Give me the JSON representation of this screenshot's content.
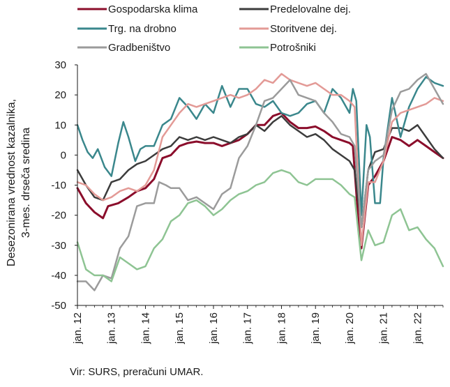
{
  "chart_data": {
    "type": "line",
    "ylabel_line1": "Desezonirana vrednost kazalnika,",
    "ylabel_line2": "3-mes. drseča sredina",
    "ylim": [
      -50,
      30
    ],
    "yticks": [
      30,
      20,
      10,
      0,
      -10,
      -20,
      -30,
      -40,
      -50
    ],
    "xlim": [
      2012.0,
      2022.75
    ],
    "xticks": [
      {
        "x": 2012,
        "label": "jan. 12"
      },
      {
        "x": 2013,
        "label": "jan. 13"
      },
      {
        "x": 2014,
        "label": "jan. 14"
      },
      {
        "x": 2015,
        "label": "jan. 15"
      },
      {
        "x": 2016,
        "label": "jan. 16"
      },
      {
        "x": 2017,
        "label": "jan. 17"
      },
      {
        "x": 2018,
        "label": "jan. 18"
      },
      {
        "x": 2019,
        "label": "jan. 19"
      },
      {
        "x": 2020,
        "label": "jan. 20"
      },
      {
        "x": 2021,
        "label": "jan. 21"
      },
      {
        "x": 2022,
        "label": "jan. 22"
      }
    ],
    "grid": false,
    "legend_position": "top",
    "series": [
      {
        "name": "Gospodarska klima",
        "color": "#8b0d2b",
        "width": 3,
        "points": [
          [
            2012,
            -11
          ],
          [
            2012.25,
            -16
          ],
          [
            2012.5,
            -19
          ],
          [
            2012.75,
            -21
          ],
          [
            2012.9,
            -17
          ],
          [
            2013.2,
            -16
          ],
          [
            2013.5,
            -14
          ],
          [
            2013.75,
            -12
          ],
          [
            2014,
            -11
          ],
          [
            2014.25,
            -8
          ],
          [
            2014.5,
            -1
          ],
          [
            2014.75,
            0
          ],
          [
            2015,
            3
          ],
          [
            2015.25,
            4
          ],
          [
            2015.5,
            4.5
          ],
          [
            2015.75,
            4
          ],
          [
            2016,
            4
          ],
          [
            2016.25,
            3
          ],
          [
            2016.5,
            4
          ],
          [
            2016.75,
            5
          ],
          [
            2017,
            7
          ],
          [
            2017.25,
            10
          ],
          [
            2017.5,
            10
          ],
          [
            2017.75,
            13
          ],
          [
            2018,
            14
          ],
          [
            2018.25,
            11
          ],
          [
            2018.5,
            9
          ],
          [
            2018.75,
            9
          ],
          [
            2019,
            9.5
          ],
          [
            2019.25,
            8
          ],
          [
            2019.5,
            6
          ],
          [
            2019.75,
            5
          ],
          [
            2020,
            4
          ],
          [
            2020.1,
            3
          ],
          [
            2020.25,
            -20
          ],
          [
            2020.35,
            -31
          ],
          [
            2020.55,
            -10
          ],
          [
            2020.75,
            -7
          ],
          [
            2021,
            -2
          ],
          [
            2021.25,
            6
          ],
          [
            2021.5,
            5
          ],
          [
            2021.75,
            3
          ],
          [
            2022,
            5
          ],
          [
            2022.25,
            3
          ],
          [
            2022.5,
            1
          ],
          [
            2022.75,
            -1
          ]
        ]
      },
      {
        "name": "Predelovalne dej.",
        "color": "#3c3c3c",
        "width": 2.5,
        "points": [
          [
            2012,
            -5
          ],
          [
            2012.25,
            -10
          ],
          [
            2012.5,
            -14
          ],
          [
            2012.75,
            -15
          ],
          [
            2013,
            -9
          ],
          [
            2013.25,
            -8
          ],
          [
            2013.5,
            -5
          ],
          [
            2013.75,
            -3
          ],
          [
            2014,
            -2
          ],
          [
            2014.25,
            0
          ],
          [
            2014.5,
            2
          ],
          [
            2014.75,
            3
          ],
          [
            2015,
            6
          ],
          [
            2015.25,
            5
          ],
          [
            2015.5,
            6
          ],
          [
            2015.75,
            5
          ],
          [
            2016,
            6
          ],
          [
            2016.25,
            5
          ],
          [
            2016.5,
            4
          ],
          [
            2016.75,
            6
          ],
          [
            2017,
            7
          ],
          [
            2017.25,
            10
          ],
          [
            2017.5,
            8
          ],
          [
            2017.75,
            11
          ],
          [
            2018,
            13
          ],
          [
            2018.25,
            10
          ],
          [
            2018.5,
            8
          ],
          [
            2018.75,
            6
          ],
          [
            2019,
            7
          ],
          [
            2019.25,
            5
          ],
          [
            2019.5,
            2
          ],
          [
            2019.75,
            0
          ],
          [
            2020,
            -2
          ],
          [
            2020.15,
            -5
          ],
          [
            2020.35,
            -24
          ],
          [
            2020.55,
            -5
          ],
          [
            2020.75,
            1
          ],
          [
            2021,
            2
          ],
          [
            2021.25,
            9
          ],
          [
            2021.5,
            9
          ],
          [
            2021.75,
            8
          ],
          [
            2022,
            10
          ],
          [
            2022.25,
            6
          ],
          [
            2022.5,
            2
          ],
          [
            2022.75,
            -1
          ]
        ]
      },
      {
        "name": "Trg. na drobno",
        "color": "#3a878c",
        "width": 2.5,
        "points": [
          [
            2012,
            10
          ],
          [
            2012.15,
            5
          ],
          [
            2012.3,
            1
          ],
          [
            2012.45,
            -1
          ],
          [
            2012.6,
            2
          ],
          [
            2012.8,
            -4
          ],
          [
            2013,
            -7
          ],
          [
            2013.2,
            4
          ],
          [
            2013.35,
            11
          ],
          [
            2013.5,
            6
          ],
          [
            2013.7,
            -2
          ],
          [
            2013.85,
            2
          ],
          [
            2014,
            3
          ],
          [
            2014.25,
            3
          ],
          [
            2014.5,
            10
          ],
          [
            2014.75,
            12
          ],
          [
            2015,
            19
          ],
          [
            2015.25,
            16
          ],
          [
            2015.5,
            12
          ],
          [
            2015.75,
            17
          ],
          [
            2016,
            14
          ],
          [
            2016.25,
            23
          ],
          [
            2016.5,
            16
          ],
          [
            2016.75,
            22
          ],
          [
            2017,
            22
          ],
          [
            2017.25,
            17
          ],
          [
            2017.5,
            16
          ],
          [
            2017.75,
            18
          ],
          [
            2018,
            14
          ],
          [
            2018.25,
            13
          ],
          [
            2018.5,
            14
          ],
          [
            2018.75,
            17
          ],
          [
            2019,
            18
          ],
          [
            2019.25,
            14
          ],
          [
            2019.5,
            22
          ],
          [
            2019.75,
            19
          ],
          [
            2020,
            14
          ],
          [
            2020.1,
            22
          ],
          [
            2020.2,
            18
          ],
          [
            2020.35,
            -20
          ],
          [
            2020.5,
            10
          ],
          [
            2020.6,
            6
          ],
          [
            2020.75,
            -16
          ],
          [
            2020.9,
            -16
          ],
          [
            2021,
            -1
          ],
          [
            2021.25,
            19
          ],
          [
            2021.5,
            6
          ],
          [
            2021.75,
            16
          ],
          [
            2022,
            22
          ],
          [
            2022.25,
            26
          ],
          [
            2022.5,
            24
          ],
          [
            2022.75,
            23
          ]
        ]
      },
      {
        "name": "Storitvene dej.",
        "color": "#e39a96",
        "width": 2.5,
        "points": [
          [
            2012,
            -9
          ],
          [
            2012.25,
            -10
          ],
          [
            2012.5,
            -13
          ],
          [
            2012.75,
            -15
          ],
          [
            2013,
            -14
          ],
          [
            2013.25,
            -12
          ],
          [
            2013.5,
            -11
          ],
          [
            2013.75,
            -12
          ],
          [
            2014,
            -10
          ],
          [
            2014.25,
            -5
          ],
          [
            2014.5,
            6
          ],
          [
            2014.75,
            10
          ],
          [
            2015,
            14
          ],
          [
            2015.25,
            17
          ],
          [
            2015.5,
            16
          ],
          [
            2015.75,
            17
          ],
          [
            2016,
            18
          ],
          [
            2016.25,
            19
          ],
          [
            2016.5,
            20
          ],
          [
            2016.75,
            19
          ],
          [
            2017,
            20
          ],
          [
            2017.25,
            22
          ],
          [
            2017.5,
            25
          ],
          [
            2017.75,
            24
          ],
          [
            2018,
            27
          ],
          [
            2018.25,
            25
          ],
          [
            2018.5,
            24
          ],
          [
            2018.75,
            23
          ],
          [
            2019,
            24
          ],
          [
            2019.25,
            22
          ],
          [
            2019.5,
            20
          ],
          [
            2019.75,
            20
          ],
          [
            2020,
            18
          ],
          [
            2020.15,
            16
          ],
          [
            2020.35,
            -30
          ],
          [
            2020.55,
            -9
          ],
          [
            2020.75,
            -9
          ],
          [
            2021,
            -2
          ],
          [
            2021.25,
            11
          ],
          [
            2021.5,
            14
          ],
          [
            2021.75,
            15
          ],
          [
            2022,
            16
          ],
          [
            2022.25,
            17
          ],
          [
            2022.5,
            19
          ],
          [
            2022.75,
            18
          ]
        ]
      },
      {
        "name": "Gradbeništvo",
        "color": "#9b9b9b",
        "width": 2.5,
        "points": [
          [
            2012,
            -42
          ],
          [
            2012.25,
            -42
          ],
          [
            2012.5,
            -45
          ],
          [
            2012.75,
            -40
          ],
          [
            2013,
            -41
          ],
          [
            2013.25,
            -31
          ],
          [
            2013.5,
            -27
          ],
          [
            2013.75,
            -17
          ],
          [
            2014,
            -16
          ],
          [
            2014.25,
            -16
          ],
          [
            2014.4,
            -9
          ],
          [
            2014.6,
            -10
          ],
          [
            2014.75,
            -11
          ],
          [
            2015,
            -11
          ],
          [
            2015.25,
            -15
          ],
          [
            2015.5,
            -14
          ],
          [
            2015.75,
            -16
          ],
          [
            2016,
            -18
          ],
          [
            2016.25,
            -13
          ],
          [
            2016.5,
            -11
          ],
          [
            2016.75,
            -1
          ],
          [
            2017,
            3
          ],
          [
            2017.25,
            10
          ],
          [
            2017.5,
            18
          ],
          [
            2017.75,
            19
          ],
          [
            2018,
            22
          ],
          [
            2018.25,
            25
          ],
          [
            2018.5,
            20
          ],
          [
            2018.75,
            19
          ],
          [
            2019,
            18
          ],
          [
            2019.25,
            14
          ],
          [
            2019.5,
            11
          ],
          [
            2019.75,
            7
          ],
          [
            2020,
            6
          ],
          [
            2020.15,
            3
          ],
          [
            2020.35,
            -24
          ],
          [
            2020.55,
            -5
          ],
          [
            2020.75,
            -2
          ],
          [
            2021,
            0
          ],
          [
            2021.25,
            15
          ],
          [
            2021.5,
            21
          ],
          [
            2021.75,
            22
          ],
          [
            2022,
            25
          ],
          [
            2022.25,
            27
          ],
          [
            2022.5,
            22
          ],
          [
            2022.75,
            17
          ]
        ]
      },
      {
        "name": "Potrošniki",
        "color": "#8ec493",
        "width": 2.5,
        "points": [
          [
            2012,
            -29
          ],
          [
            2012.25,
            -38
          ],
          [
            2012.5,
            -40
          ],
          [
            2012.75,
            -40
          ],
          [
            2013,
            -42
          ],
          [
            2013.25,
            -34
          ],
          [
            2013.5,
            -36
          ],
          [
            2013.75,
            -38
          ],
          [
            2014,
            -37
          ],
          [
            2014.25,
            -31
          ],
          [
            2014.5,
            -28
          ],
          [
            2014.75,
            -22
          ],
          [
            2015,
            -20
          ],
          [
            2015.25,
            -16
          ],
          [
            2015.5,
            -15
          ],
          [
            2015.75,
            -17
          ],
          [
            2016,
            -20
          ],
          [
            2016.25,
            -18
          ],
          [
            2016.5,
            -15
          ],
          [
            2016.75,
            -13
          ],
          [
            2017,
            -12
          ],
          [
            2017.25,
            -10
          ],
          [
            2017.5,
            -9
          ],
          [
            2017.75,
            -6
          ],
          [
            2018,
            -5
          ],
          [
            2018.25,
            -6
          ],
          [
            2018.5,
            -9
          ],
          [
            2018.75,
            -10
          ],
          [
            2019,
            -8
          ],
          [
            2019.25,
            -8
          ],
          [
            2019.5,
            -8
          ],
          [
            2019.75,
            -10
          ],
          [
            2020,
            -13
          ],
          [
            2020.15,
            -14
          ],
          [
            2020.35,
            -35
          ],
          [
            2020.55,
            -25
          ],
          [
            2020.75,
            -30
          ],
          [
            2021,
            -29
          ],
          [
            2021.25,
            -20
          ],
          [
            2021.5,
            -18
          ],
          [
            2021.75,
            -25
          ],
          [
            2022,
            -24
          ],
          [
            2022.25,
            -28
          ],
          [
            2022.5,
            -31
          ],
          [
            2022.75,
            -37
          ]
        ]
      }
    ]
  },
  "source_text": "Vir: SURS, preračuni UMAR."
}
